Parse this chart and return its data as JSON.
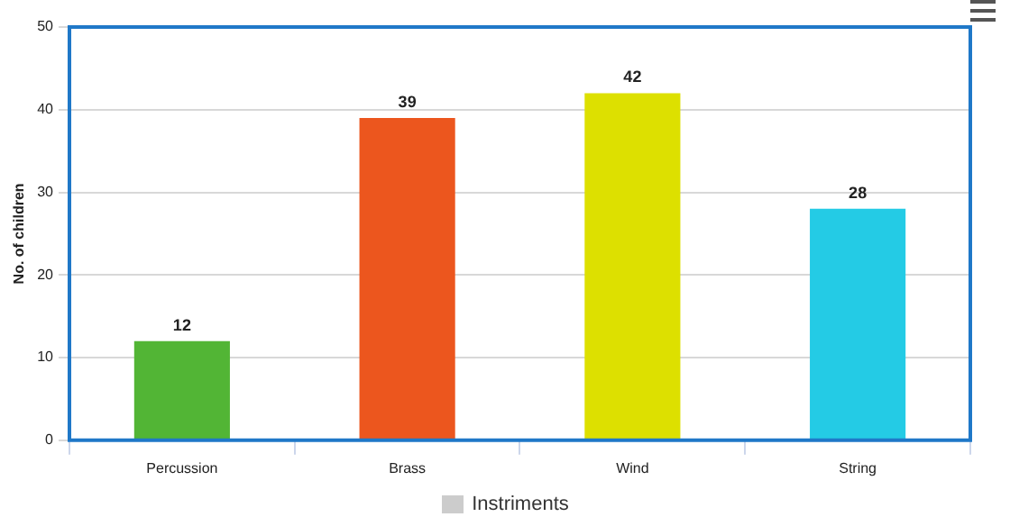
{
  "chart_data": {
    "type": "bar",
    "ylabel": "No. of children",
    "categories": [
      "Percussion",
      "Brass",
      "Wind",
      "String"
    ],
    "series": [
      {
        "name": "Instriments",
        "color": "#cccccc",
        "colors": [
          "#52b535",
          "#ec561e",
          "#dde000",
          "#24cbe5"
        ],
        "values": [
          12,
          39,
          42,
          28
        ]
      }
    ],
    "ylim": [
      0,
      50
    ],
    "yticks": [
      0,
      10,
      20,
      30,
      40,
      50
    ],
    "grid": "y",
    "legend": "bottom",
    "data_labels": true
  }
}
